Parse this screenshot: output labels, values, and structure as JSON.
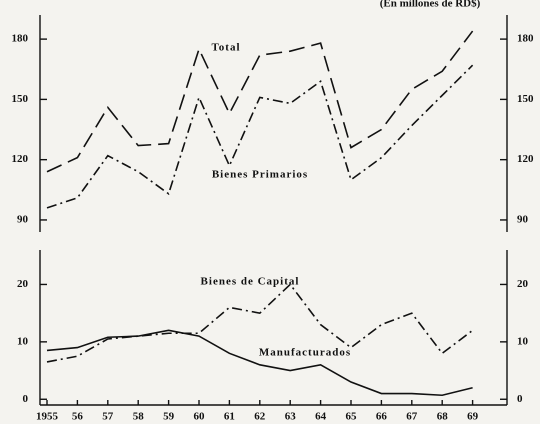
{
  "chart_data": [
    {
      "type": "line",
      "subtitle": "(En millones de RD$)",
      "ylim": [
        84,
        192
      ],
      "yticks": [
        90,
        120,
        150,
        180
      ],
      "series": [
        {
          "name": "Total",
          "color": "#111111",
          "line_style": "dashed",
          "values": [
            114,
            121,
            146,
            127,
            128,
            175,
            143,
            172,
            174,
            178,
            126,
            135,
            155,
            164,
            184
          ]
        },
        {
          "name": "Bienes Primarios",
          "color": "#111111",
          "line_style": "dashdot",
          "values": [
            96,
            101,
            122,
            114,
            103,
            151,
            117,
            151,
            148,
            159,
            110,
            121,
            137,
            152,
            167
          ]
        }
      ]
    },
    {
      "type": "line",
      "categories": [
        "1955",
        "56",
        "57",
        "58",
        "59",
        "60",
        "61",
        "62",
        "63",
        "64",
        "65",
        "66",
        "67",
        "68",
        "69"
      ],
      "ylim": [
        -1,
        26
      ],
      "yticks": [
        0,
        10,
        20
      ],
      "series": [
        {
          "name": "Bienes de Capital",
          "color": "#111111",
          "line_style": "dashdot",
          "values": [
            6.5,
            7.5,
            10.5,
            11,
            11.5,
            11.5,
            16,
            15,
            20,
            13,
            9,
            13,
            15,
            8,
            12
          ]
        },
        {
          "name": "Manufacturados",
          "color": "#111111",
          "line_style": "solid",
          "values": [
            8.5,
            9,
            10.8,
            11,
            12,
            11,
            8,
            6,
            5,
            6,
            3,
            1,
            1,
            0.7,
            2
          ]
        }
      ]
    }
  ]
}
